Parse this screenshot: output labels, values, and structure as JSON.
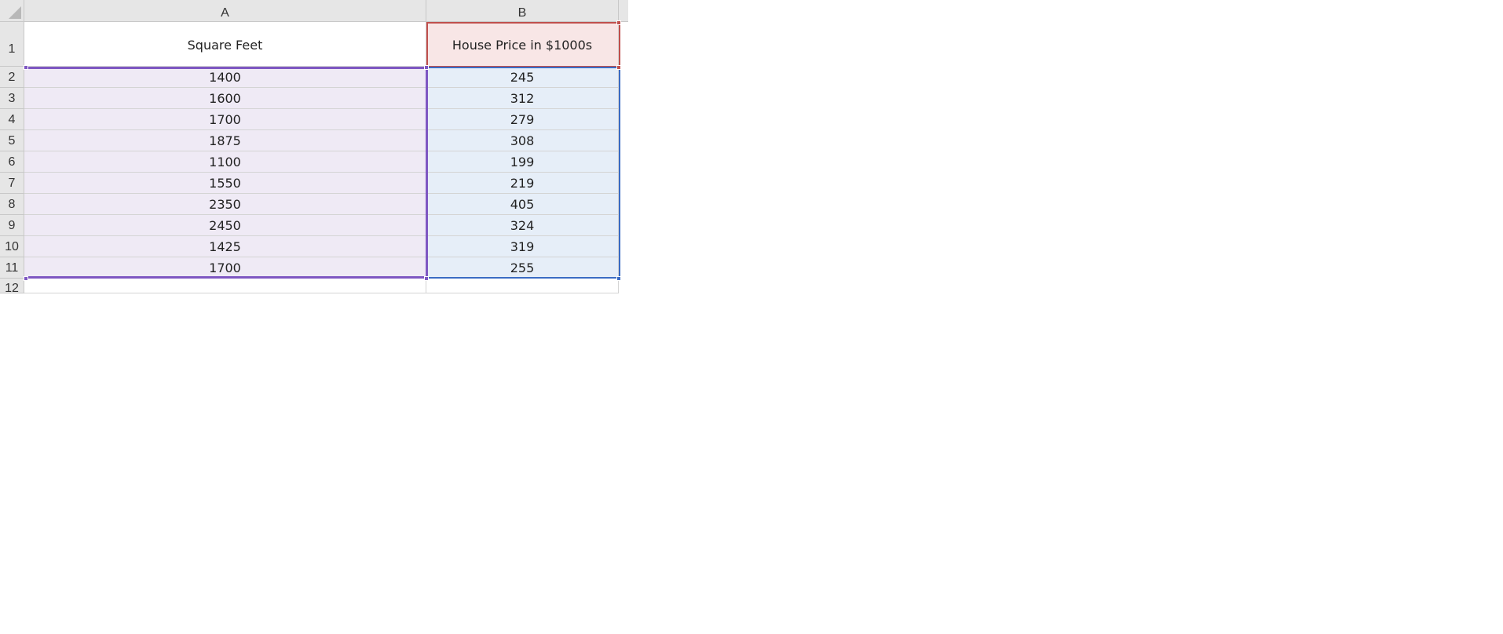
{
  "columns": [
    "A",
    "B"
  ],
  "header_row": {
    "row_number": "1",
    "a": "Square Feet",
    "b": "House Price in $1000s"
  },
  "rows": [
    {
      "row_number": "2",
      "a": "1400",
      "b": "245"
    },
    {
      "row_number": "3",
      "a": "1600",
      "b": "312"
    },
    {
      "row_number": "4",
      "a": "1700",
      "b": "279"
    },
    {
      "row_number": "5",
      "a": "1875",
      "b": "308"
    },
    {
      "row_number": "6",
      "a": "1100",
      "b": "199"
    },
    {
      "row_number": "7",
      "a": "1550",
      "b": "219"
    },
    {
      "row_number": "8",
      "a": "2350",
      "b": "405"
    },
    {
      "row_number": "9",
      "a": "2450",
      "b": "324"
    },
    {
      "row_number": "10",
      "a": "1425",
      "b": "319"
    },
    {
      "row_number": "11",
      "a": "1700",
      "b": "255"
    }
  ],
  "blank_row": {
    "row_number": "12"
  },
  "colors": {
    "range_a_highlight": "#7e57c2",
    "range_b_highlight": "#3b6cc4",
    "header_b_highlight": "#c0504d"
  }
}
